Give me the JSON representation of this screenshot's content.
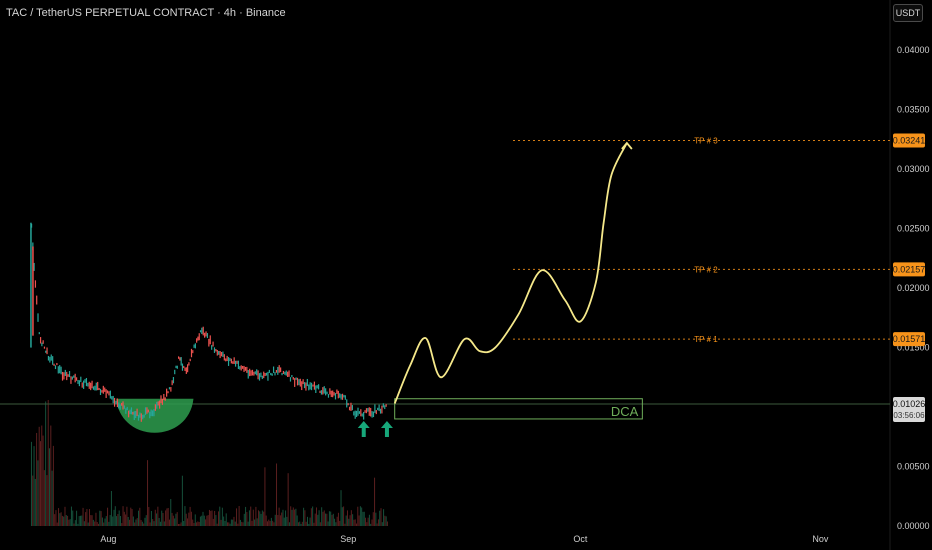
{
  "header": {
    "title": "TAC / TetherUS PERPETUAL CONTRACT · 4h · Binance",
    "unit_button": "USDT"
  },
  "colors": {
    "background": "#000000",
    "candle_up": "#26a69a",
    "candle_down": "#ef5350",
    "projection": "#f5e88a",
    "target_badge": "#f7931a",
    "cup_fill": "#2e9e4f",
    "dca_box": "#6fae5a",
    "arrow": "#17a77a"
  },
  "chart_data": {
    "type": "line",
    "title": "TAC / TetherUS PERPETUAL CONTRACT · 4h · Binance",
    "y_axis_ticks": [
      "0.04000",
      "0.03500",
      "0.03000",
      "0.02500",
      "0.02000",
      "0.01500",
      "0.00500",
      "0.00000"
    ],
    "y_axis_tick_values": [
      0.04,
      0.035,
      0.03,
      0.025,
      0.02,
      0.015,
      0.005,
      0.0
    ],
    "ylim": [
      0.0,
      0.0417
    ],
    "x_axis_ticks": [
      "Aug",
      "Sep",
      "Oct",
      "Nov"
    ],
    "x_range": [
      "2025-07-18",
      "2025-11-10"
    ],
    "x_axis_tick_dates": [
      "2025-08-01",
      "2025-09-01",
      "2025-10-01",
      "2025-11-01"
    ],
    "current_price": {
      "label": "0.01026",
      "value": 0.01026,
      "countdown": "03:56:06"
    },
    "price_series": {
      "dates": [
        "2025-07-22",
        "2025-07-23",
        "2025-07-24",
        "2025-07-26",
        "2025-07-28",
        "2025-07-30",
        "2025-08-01",
        "2025-08-03",
        "2025-08-05",
        "2025-08-07",
        "2025-08-09",
        "2025-08-10",
        "2025-08-11",
        "2025-08-12",
        "2025-08-13",
        "2025-08-15",
        "2025-08-17",
        "2025-08-19",
        "2025-08-21",
        "2025-08-23",
        "2025-08-25",
        "2025-08-27",
        "2025-08-29",
        "2025-08-31",
        "2025-09-02",
        "2025-09-04",
        "2025-09-06"
      ],
      "values": [
        0.025,
        0.016,
        0.0145,
        0.0128,
        0.0122,
        0.0118,
        0.011,
        0.0098,
        0.0092,
        0.0098,
        0.0115,
        0.014,
        0.0132,
        0.015,
        0.0165,
        0.0145,
        0.0138,
        0.013,
        0.0125,
        0.0132,
        0.0122,
        0.0118,
        0.0112,
        0.011,
        0.0094,
        0.0096,
        0.01
      ]
    },
    "targets": [
      {
        "name": "TP # 1",
        "label": "0.01571",
        "value": 0.01571
      },
      {
        "name": "TP # 2",
        "label": "0.02157",
        "value": 0.02157
      },
      {
        "name": "TP # 3",
        "label": "0.03241",
        "value": 0.03241
      }
    ],
    "projection": {
      "dates": [
        "2025-09-07",
        "2025-09-09",
        "2025-09-11",
        "2025-09-13",
        "2025-09-16",
        "2025-09-18",
        "2025-09-20",
        "2025-09-23",
        "2025-09-26",
        "2025-09-29",
        "2025-10-01",
        "2025-10-03",
        "2025-10-04",
        "2025-10-05",
        "2025-10-07"
      ],
      "values": [
        0.0103,
        0.0135,
        0.0158,
        0.0125,
        0.0157,
        0.0147,
        0.015,
        0.0178,
        0.0215,
        0.019,
        0.0172,
        0.0205,
        0.0255,
        0.0295,
        0.0322
      ]
    },
    "dca_zone": {
      "label": "DCA",
      "from": 0.009,
      "to": 0.0107,
      "start": "2025-09-07",
      "end": "2025-10-09"
    },
    "cup": {
      "start": "2025-08-02",
      "end": "2025-08-12",
      "low": 0.0079,
      "top": 0.0107
    },
    "entry_arrows": [
      "2025-09-03",
      "2025-09-06"
    ]
  }
}
